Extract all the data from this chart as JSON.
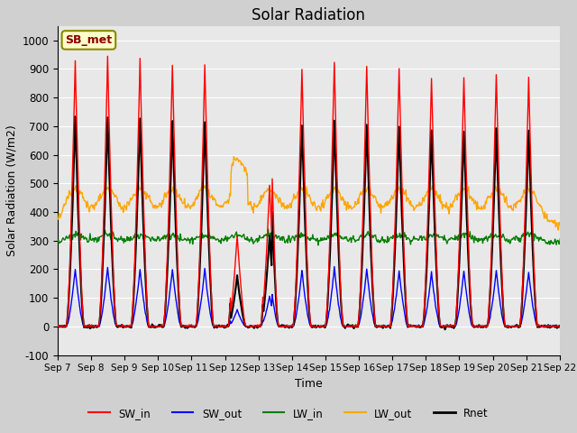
{
  "title": "Solar Radiation",
  "xlabel": "Time",
  "ylabel": "Solar Radiation (W/m2)",
  "ylim": [
    -100,
    1050
  ],
  "background_color": "#e8e8e8",
  "fig_bg_color": "#d8d8d8",
  "legend_label": "SB_met",
  "series": {
    "SW_in": {
      "color": "red",
      "lw": 1.0
    },
    "SW_out": {
      "color": "blue",
      "lw": 1.0
    },
    "LW_in": {
      "color": "green",
      "lw": 1.0
    },
    "LW_out": {
      "color": "orange",
      "lw": 1.0
    },
    "Rnet": {
      "color": "black",
      "lw": 1.5
    }
  },
  "xtick_labels": [
    "Sep 7",
    "Sep 8",
    "Sep 9",
    "Sep 10",
    "Sep 11",
    "Sep 12",
    "Sep 13",
    "Sep 14",
    "Sep 15",
    "Sep 16",
    "Sep 17",
    "Sep 18",
    "Sep 19",
    "Sep 20",
    "Sep 21",
    "Sep 22"
  ],
  "ytick_labels": [
    -100,
    0,
    100,
    200,
    300,
    400,
    500,
    600,
    700,
    800,
    900,
    1000
  ]
}
